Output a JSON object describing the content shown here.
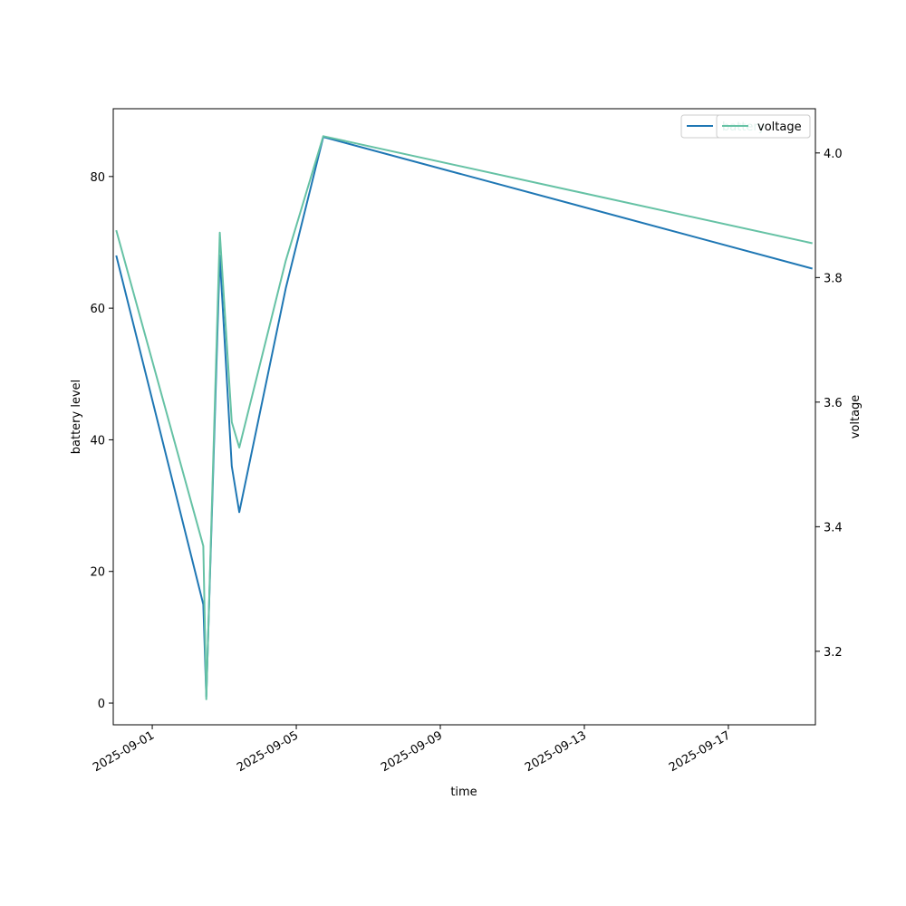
{
  "chart_data": {
    "type": "line",
    "xlabel": "time",
    "ylabel_left": "battery level",
    "ylabel_right": "voltage",
    "x_ticks": [
      "2025-09-01",
      "2025-09-05",
      "2025-09-09",
      "2025-09-13",
      "2025-09-17"
    ],
    "y_left_ticks": [
      0,
      20,
      40,
      60,
      80
    ],
    "y_right_ticks": [
      3.2,
      3.4,
      3.6,
      3.8,
      4.0
    ],
    "x_range": [
      "2025-08-30T22:00",
      "2025-09-19T10:00"
    ],
    "y_left_range": [
      -3.3,
      90.3
    ],
    "y_right_range": [
      3.082,
      4.071
    ],
    "x": [
      "2025-08-31T00:00",
      "2025-09-02T10:00",
      "2025-09-02T12:00",
      "2025-09-02T21:00",
      "2025-09-03T05:00",
      "2025-09-03T10:00",
      "2025-09-04T17:00",
      "2025-09-05T18:00",
      "2025-09-19T08:00"
    ],
    "series": [
      {
        "name": "battery",
        "axis": "left",
        "color": "#1f77b4",
        "values": [
          68,
          15,
          1,
          68,
          36,
          29,
          63,
          86,
          66
        ]
      },
      {
        "name": "voltage",
        "axis": "right",
        "color": "#66c2a5",
        "values": [
          3.876,
          3.369,
          3.123,
          3.872,
          3.568,
          3.527,
          3.827,
          4.027,
          3.855
        ]
      }
    ],
    "legend_position": "top-right",
    "grid": false
  }
}
